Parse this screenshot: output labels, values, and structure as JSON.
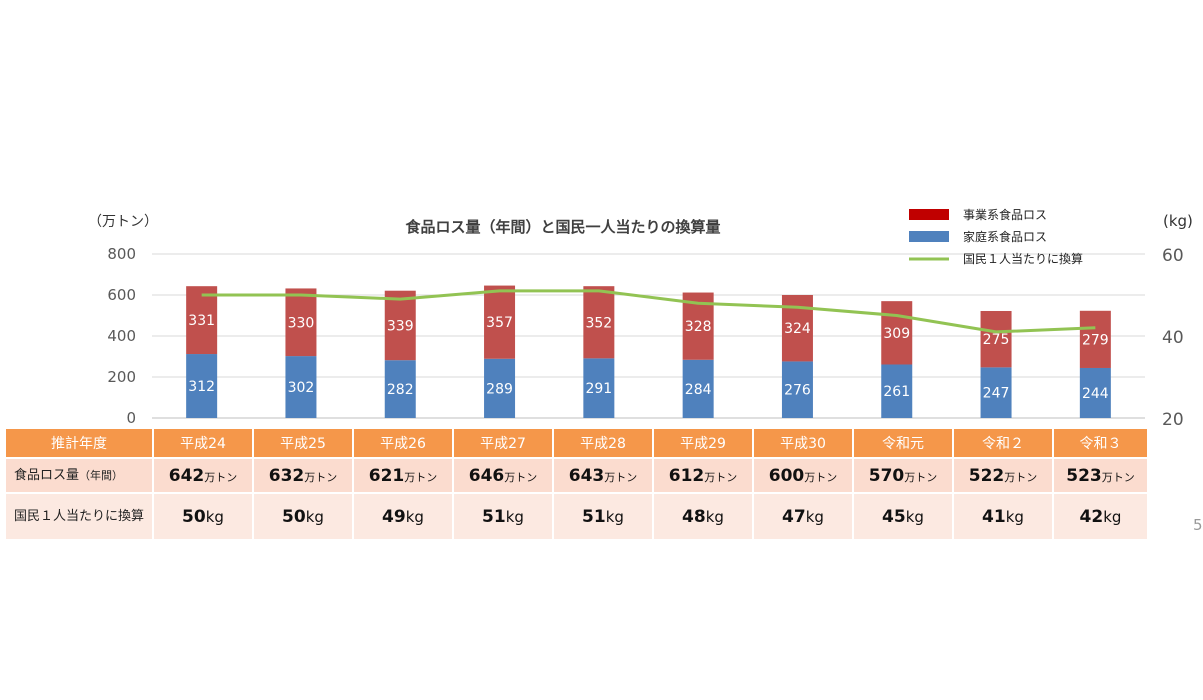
{
  "chart_data": {
    "type": "bar",
    "stacked": true,
    "title": "食品ロス量（年間）と国民一人当たりの換算量",
    "left_axis_unit": "（万トン）",
    "right_axis_unit": "(kg)",
    "left_ylim": [
      0,
      800
    ],
    "left_ticks": [
      "0",
      "200",
      "400",
      "600",
      "800"
    ],
    "right_ylim": [
      20,
      60
    ],
    "right_ticks": [
      "20",
      "40",
      "60"
    ],
    "categories": [
      "平成24",
      "平成25",
      "平成26",
      "平成27",
      "平成28",
      "平成29",
      "平成30",
      "令和元",
      "令和２",
      "令和３"
    ],
    "series": [
      {
        "name": "家庭系食品ロス",
        "type": "bar",
        "axis": "left",
        "color": "#4f81bd",
        "values": [
          312,
          302,
          282,
          289,
          291,
          284,
          276,
          261,
          247,
          244
        ]
      },
      {
        "name": "事業系食品ロス",
        "type": "bar",
        "axis": "left",
        "color": "#c0504d",
        "values": [
          331,
          330,
          339,
          357,
          352,
          328,
          324,
          309,
          275,
          279
        ]
      },
      {
        "name": "国民１人当たりに換算",
        "type": "line",
        "axis": "right",
        "color": "#92c353",
        "values": [
          50,
          50,
          49,
          51,
          51,
          48,
          47,
          45,
          41,
          42
        ]
      }
    ],
    "legend": [
      {
        "label": "事業系食品ロス",
        "color": "#c00000",
        "kind": "box"
      },
      {
        "label": "家庭系食品ロス",
        "color": "#4f81bd",
        "kind": "box"
      },
      {
        "label": "国民１人当たりに換算",
        "color": "#92c353",
        "kind": "line"
      }
    ],
    "legend_position": "top-right",
    "grid": true
  },
  "table": {
    "header_label": "推計年度",
    "row1_label": "食品ロス量",
    "row1_label_sub": "（年間）",
    "row1_unit": "万トン",
    "row2_label": "国民１人当たりに換算",
    "row2_unit": "kg",
    "totals": [
      "642",
      "632",
      "621",
      "646",
      "643",
      "612",
      "600",
      "570",
      "522",
      "523"
    ],
    "per_capita": [
      "50",
      "50",
      "49",
      "51",
      "51",
      "48",
      "47",
      "45",
      "41",
      "42"
    ]
  },
  "page_number": "5"
}
